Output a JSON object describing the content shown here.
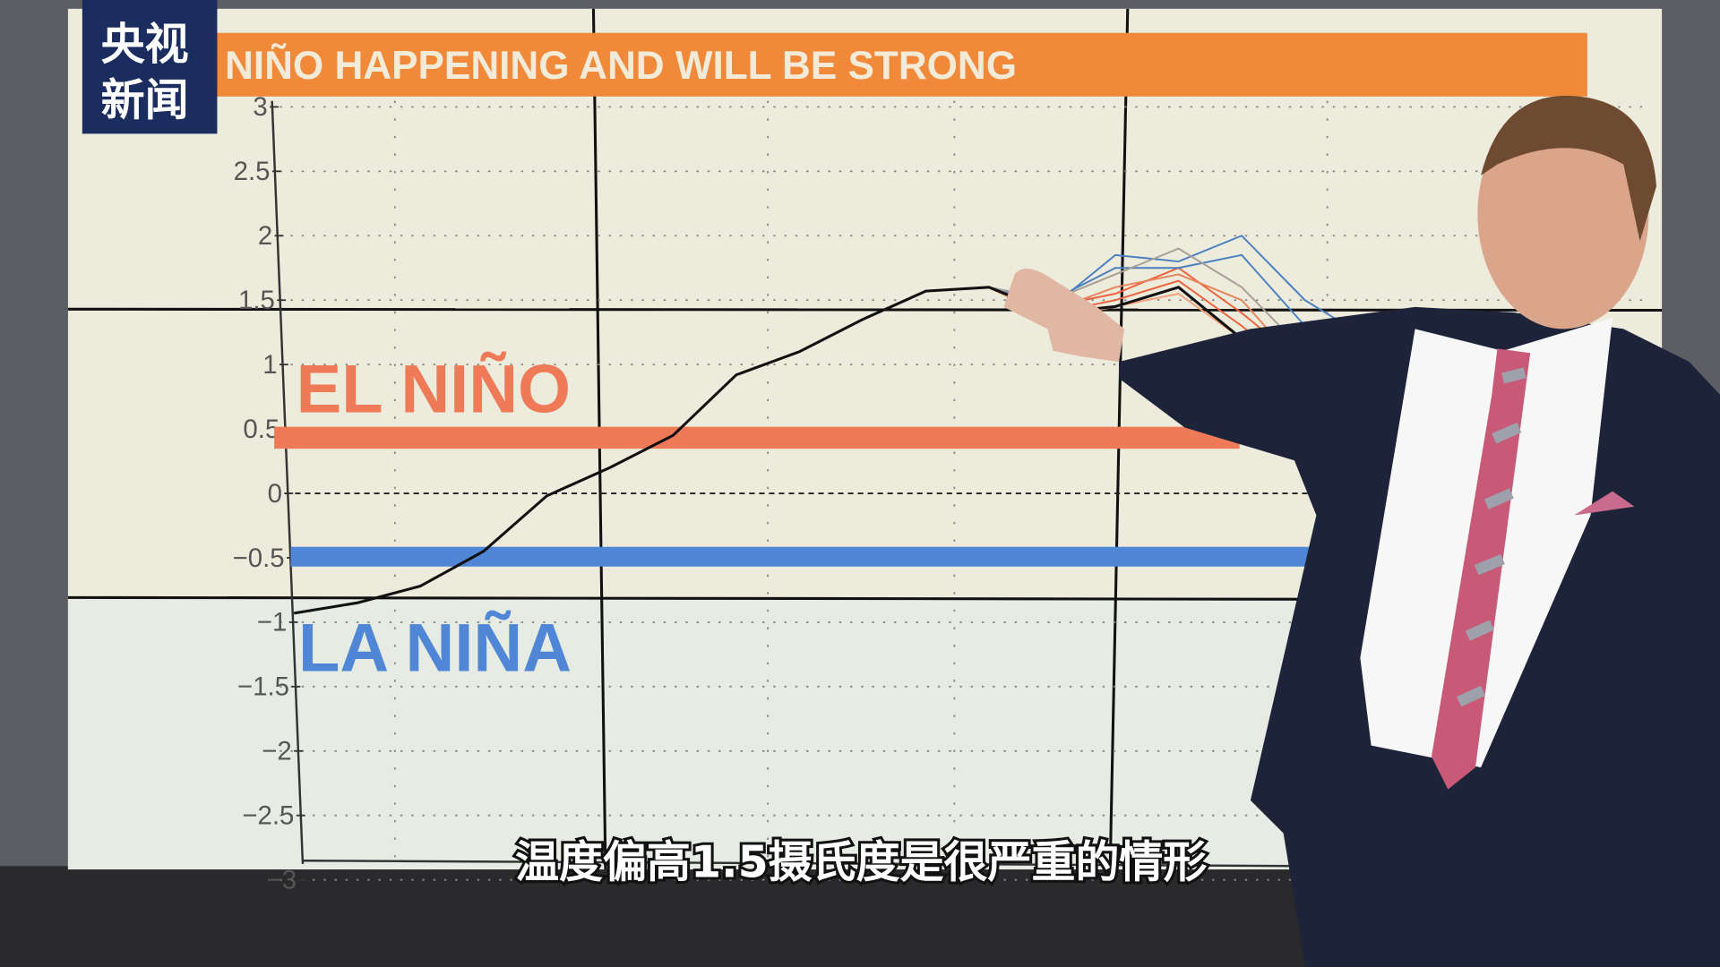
{
  "logo": {
    "line1": "央视",
    "line2": "新闻"
  },
  "subtitle": "温度偏高1.5摄氏度是很严重的情形",
  "colors": {
    "title_bar": "#f0893a",
    "el_nino": "#ef7a58",
    "la_nina": "#4f86d6",
    "observed": "#111111",
    "logo_bg": "#1b2d5e"
  },
  "chart_data": {
    "type": "line",
    "title": "NIÑO HAPPENING AND WILL BE STRONG",
    "yticks": [
      "3",
      "2.5",
      "2",
      "1.5",
      "1",
      "0.5",
      "0",
      "−0.5",
      "−1",
      "−1.5",
      "−2",
      "−2.5",
      "−3"
    ],
    "ylim": [
      -3,
      3
    ],
    "grid": true,
    "el_nino_label": "EL NIÑO",
    "la_nina_label": "LA NIÑA",
    "el_nino_threshold": 0.5,
    "la_nina_threshold": -0.5,
    "observed": {
      "x": [
        0,
        1,
        2,
        3,
        4,
        5,
        6,
        7,
        8,
        9,
        10,
        11,
        12,
        13,
        14,
        15,
        16
      ],
      "y": [
        -0.93,
        -0.85,
        -0.72,
        -0.45,
        -0.02,
        0.2,
        0.45,
        0.92,
        1.1,
        1.35,
        1.57,
        1.6,
        1.4,
        1.45,
        1.6,
        1.2,
        0.9
      ]
    },
    "ensemble": [
      {
        "color": "#f0603a",
        "x": [
          11,
          12,
          13,
          14,
          15,
          16,
          17
        ],
        "y": [
          1.6,
          1.45,
          1.55,
          1.75,
          1.4,
          1.0,
          0.3
        ]
      },
      {
        "color": "#f0603a",
        "x": [
          11,
          12,
          13,
          14,
          15,
          16,
          17
        ],
        "y": [
          1.6,
          1.4,
          1.5,
          1.65,
          1.3,
          0.9,
          0.0
        ]
      },
      {
        "color": "#f5a07a",
        "x": [
          11,
          12,
          13,
          14,
          15,
          16,
          17
        ],
        "y": [
          1.6,
          1.35,
          1.45,
          1.55,
          1.2,
          0.8,
          -0.1
        ]
      },
      {
        "color": "#4a7fc0",
        "x": [
          11,
          12,
          13,
          14,
          15,
          16,
          17
        ],
        "y": [
          1.6,
          1.45,
          1.85,
          1.8,
          2.0,
          1.5,
          1.2
        ]
      },
      {
        "color": "#4a7fc0",
        "x": [
          11,
          12,
          13,
          14,
          15,
          16,
          17
        ],
        "y": [
          1.6,
          1.5,
          1.75,
          1.75,
          1.85,
          1.3,
          1.1
        ]
      },
      {
        "color": "#a89f95",
        "x": [
          11,
          12,
          13,
          14,
          15,
          16,
          17
        ],
        "y": [
          1.6,
          1.5,
          1.7,
          1.9,
          1.6,
          1.1,
          0.4
        ]
      },
      {
        "color": "#e8845e",
        "x": [
          11,
          12,
          13,
          14,
          15,
          16,
          17
        ],
        "y": [
          1.6,
          1.42,
          1.6,
          1.7,
          1.5,
          0.95,
          -0.2
        ]
      }
    ]
  }
}
